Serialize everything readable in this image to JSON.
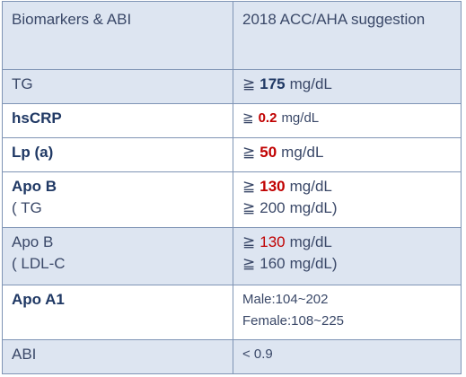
{
  "table": {
    "header": [
      "Biomarkers & ABI",
      "2018 ACC/AHA suggestion"
    ],
    "rows": [
      {
        "shaded": true,
        "marker": [
          [
            {
              "text": "TG"
            }
          ]
        ],
        "suggestion": [
          [
            {
              "text": "≧"
            },
            {
              "text": "175",
              "bold": true,
              "color": "#1f3864"
            },
            {
              "text": "mg/dL"
            }
          ]
        ]
      },
      {
        "shaded": false,
        "marker": [
          [
            {
              "text": "hsCRP",
              "bold": true
            }
          ]
        ],
        "suggestion": [
          [
            {
              "text": "≧"
            },
            {
              "text": "0.2",
              "bold": true,
              "color": "#c00000"
            },
            {
              "text": "mg/dL"
            }
          ]
        ]
      },
      {
        "shaded": false,
        "marker": [
          [
            {
              "text": "Lp (a)",
              "bold": true
            }
          ]
        ],
        "suggestion": [
          [
            {
              "text": "≧"
            },
            {
              "text": "50",
              "bold": true,
              "color": "#c00000"
            },
            {
              "text": "mg/dL"
            }
          ]
        ]
      },
      {
        "shaded": false,
        "marker": [
          [
            {
              "text": "Apo B",
              "bold": true
            }
          ],
          [
            {
              "text": "( TG"
            }
          ]
        ],
        "suggestion": [
          [
            {
              "text": "≧"
            },
            {
              "text": "130",
              "bold": true,
              "color": "#c00000"
            },
            {
              "text": "mg/dL"
            }
          ],
          [
            {
              "text": "≧"
            },
            {
              "text": "200"
            },
            {
              "text": "mg/dL)"
            }
          ]
        ]
      },
      {
        "shaded": true,
        "marker": [
          [
            {
              "text": "Apo B"
            }
          ],
          [
            {
              "text": "( LDL-C"
            }
          ]
        ],
        "suggestion": [
          [
            {
              "text": "≧"
            },
            {
              "text": "130",
              "color": "#c00000"
            },
            {
              "text": "mg/dL"
            }
          ],
          [
            {
              "text": "≧"
            },
            {
              "text": "160"
            },
            {
              "text": "mg/dL)"
            }
          ]
        ]
      },
      {
        "shaded": false,
        "marker": [
          [
            {
              "text": "Apo A1",
              "bold": true
            }
          ]
        ],
        "suggestion": [
          [
            {
              "text": "Male:104~202"
            }
          ],
          [
            {
              "text": "Female:108~225"
            }
          ]
        ]
      },
      {
        "shaded": true,
        "marker": [
          [
            {
              "text": "ABI"
            }
          ]
        ],
        "suggestion": [
          [
            {
              "text": "< 0.9"
            }
          ]
        ]
      }
    ]
  }
}
